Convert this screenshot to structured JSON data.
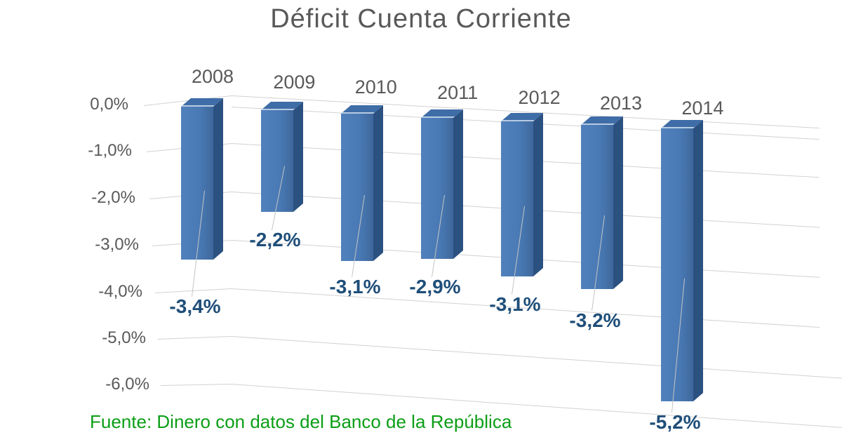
{
  "title": "Déficit Cuenta Corriente",
  "source": "Fuente: Dinero con datos del Banco de la República",
  "colors": {
    "bar_front": "#4a7ab5",
    "bar_side": "#2b5181",
    "bar_top": "#3f6da7",
    "bar_top_highlight": "#b7cbe2",
    "value_label_text": "#1f4e79",
    "axis_text": "#595959",
    "title_text": "#595959",
    "gridline": "#d3d1d1",
    "source_text": "#0b9e16",
    "background": "#ffffff"
  },
  "chart_data": {
    "type": "bar",
    "style": "3d-column",
    "title": "Déficit Cuenta Corriente",
    "categories": [
      "2008",
      "2009",
      "2010",
      "2011",
      "2012",
      "2013",
      "2014"
    ],
    "values": [
      -3.4,
      -2.2,
      -3.1,
      -2.9,
      -3.1,
      -3.2,
      -5.2
    ],
    "data_labels": [
      "-3,4%",
      "-2,2%",
      "-3,1%",
      "-2,9%",
      "-3,1%",
      "-3,2%",
      "-5,2%"
    ],
    "y_ticks": [
      "0,0%",
      "-1,0%",
      "-2,0%",
      "-3,0%",
      "-4,0%",
      "-5,0%",
      "-6,0%"
    ],
    "ylim": [
      -6.5,
      0
    ],
    "xlabel": "",
    "ylabel": "",
    "grid": true,
    "legend": false,
    "source": "Fuente: Dinero con datos del Banco de la República"
  }
}
